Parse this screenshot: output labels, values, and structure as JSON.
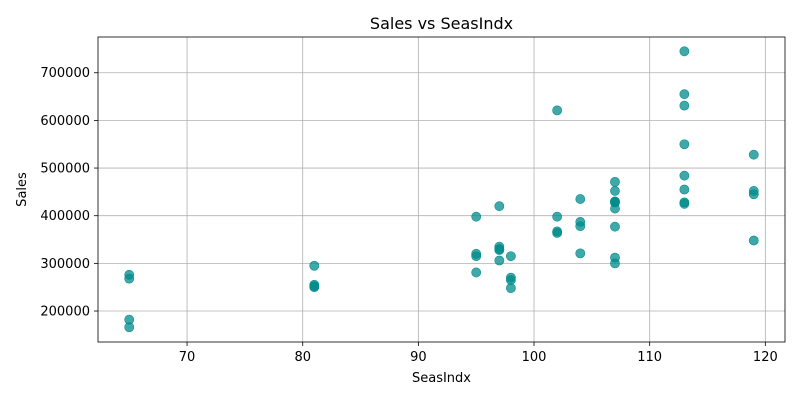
{
  "chart_data": {
    "type": "scatter",
    "title": "Sales vs SeasIndx",
    "xlabel": "SeasIndx",
    "ylabel": "Sales",
    "xlim": [
      62.3,
      121.7
    ],
    "ylim": [
      135000,
      775000
    ],
    "xticks": [
      70,
      80,
      90,
      100,
      110,
      120
    ],
    "yticks": [
      200000,
      300000,
      400000,
      500000,
      600000,
      700000
    ],
    "grid": true,
    "marker_color": "#008b8b",
    "marker_alpha": 0.75,
    "x": [
      65,
      65,
      65,
      65,
      81,
      81,
      81,
      81,
      95,
      95,
      95,
      95,
      97,
      97,
      97,
      97,
      97,
      98,
      98,
      98,
      98,
      102,
      102,
      102,
      102,
      104,
      104,
      104,
      104,
      107,
      107,
      107,
      107,
      107,
      107,
      107,
      107,
      107,
      113,
      113,
      113,
      113,
      113,
      113,
      113,
      113,
      119,
      119,
      119,
      119
    ],
    "y": [
      276000,
      268000,
      182000,
      166000,
      295000,
      255000,
      252000,
      250000,
      398000,
      320000,
      315000,
      281000,
      420000,
      335000,
      328000,
      306000,
      330000,
      315000,
      270000,
      265000,
      248000,
      621000,
      398000,
      367000,
      364000,
      435000,
      387000,
      378000,
      321000,
      471000,
      452000,
      430000,
      428000,
      415000,
      377000,
      312000,
      300000,
      429000,
      745000,
      655000,
      631000,
      550000,
      484000,
      455000,
      428000,
      425000,
      528000,
      452000,
      445000,
      348000
    ]
  }
}
